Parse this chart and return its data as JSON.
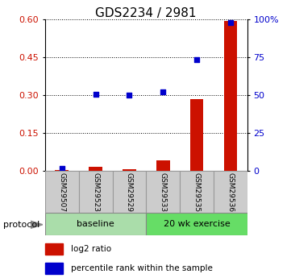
{
  "title": "GDS2234 / 2981",
  "samples": [
    "GSM29507",
    "GSM29523",
    "GSM29529",
    "GSM29533",
    "GSM29535",
    "GSM29536"
  ],
  "log2_ratio": [
    0.003,
    0.018,
    0.008,
    0.042,
    0.285,
    0.595
  ],
  "percentile_rank": [
    1.5,
    50.5,
    50.0,
    52.0,
    73.5,
    98.0
  ],
  "left_ylim": [
    0,
    0.6
  ],
  "right_ylim": [
    0,
    100
  ],
  "left_yticks": [
    0,
    0.15,
    0.3,
    0.45,
    0.6
  ],
  "right_yticks": [
    0,
    25,
    50,
    75,
    100
  ],
  "right_yticklabels": [
    "0",
    "25",
    "50",
    "75",
    "100%"
  ],
  "bar_color": "#cc1100",
  "marker_color": "#0000cc",
  "baseline_color": "#aaddaa",
  "exercise_color": "#66dd66",
  "sample_box_color": "#cccccc",
  "protocol_label": "protocol",
  "legend_items": [
    {
      "label": "log2 ratio",
      "color": "#cc1100"
    },
    {
      "label": "percentile rank within the sample",
      "color": "#0000cc"
    }
  ],
  "bar_width": 0.4,
  "title_fontsize": 11,
  "tick_fontsize": 8,
  "sample_fontsize": 6.5,
  "protocol_fontsize": 8,
  "legend_fontsize": 7.5
}
